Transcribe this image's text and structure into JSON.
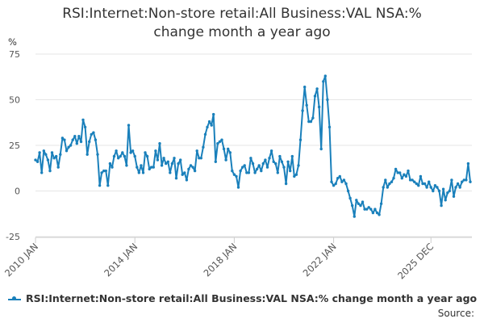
{
  "chart_data": {
    "type": "line",
    "title_line1": "RSI:Internet:Non-store retail:All Business:VAL NSA:%",
    "title_line2": "change month a year ago",
    "ylabel": "%",
    "ylim": [
      -25,
      75
    ],
    "y_ticks": [
      "75",
      "50",
      "25",
      "0",
      "-25"
    ],
    "x_ticks": [
      "2010 JAN",
      "2014 JAN",
      "2018 JAN",
      "2022 JAN",
      "2025 DEC"
    ],
    "grid": true,
    "legend_position": "bottom",
    "source_label": "Source:",
    "color": "#1a80bb",
    "series": [
      {
        "name": "RSI:Internet:Non-store retail:All Business:VAL NSA:% change month a year ago",
        "start": "2010-01",
        "values": [
          17,
          16,
          21,
          10,
          22,
          20,
          17,
          11,
          21,
          18,
          19,
          13,
          20,
          29,
          28,
          22,
          24,
          25,
          28,
          30,
          26,
          30,
          27,
          39,
          35,
          20,
          27,
          31,
          32,
          28,
          20,
          3,
          10,
          11,
          11,
          3,
          15,
          13,
          19,
          22,
          18,
          19,
          21,
          19,
          14,
          36,
          21,
          22,
          19,
          13,
          10,
          14,
          10,
          21,
          19,
          12,
          13,
          13,
          22,
          17,
          26,
          14,
          18,
          15,
          16,
          10,
          15,
          18,
          7,
          15,
          17,
          9,
          10,
          6,
          12,
          14,
          13,
          11,
          22,
          18,
          18,
          24,
          31,
          35,
          38,
          36,
          42,
          16,
          26,
          27,
          28,
          23,
          17,
          23,
          21,
          11,
          9,
          8,
          2,
          11,
          13,
          14,
          10,
          10,
          18,
          15,
          10,
          12,
          14,
          11,
          15,
          17,
          13,
          18,
          22,
          16,
          15,
          10,
          19,
          16,
          13,
          4,
          16,
          11,
          19,
          8,
          9,
          14,
          28,
          44,
          57,
          47,
          38,
          38,
          40,
          52,
          56,
          46,
          23,
          60,
          63,
          50,
          35,
          5,
          3,
          4,
          7,
          8,
          5,
          6,
          4,
          0,
          -4,
          -8,
          -14,
          -5,
          -7,
          -8,
          -6,
          -10,
          -10,
          -9,
          -10,
          -12,
          -10,
          -12,
          -13,
          -7,
          2,
          6,
          2,
          4,
          5,
          7,
          12,
          10,
          10,
          7,
          9,
          8,
          11,
          6,
          6,
          5,
          4,
          3,
          8,
          4,
          4,
          2,
          5,
          2,
          0,
          3,
          2,
          0,
          -8,
          1,
          -5,
          -1,
          0,
          6,
          -3,
          2,
          4,
          2,
          5,
          6,
          6,
          15,
          5
        ]
      }
    ]
  }
}
